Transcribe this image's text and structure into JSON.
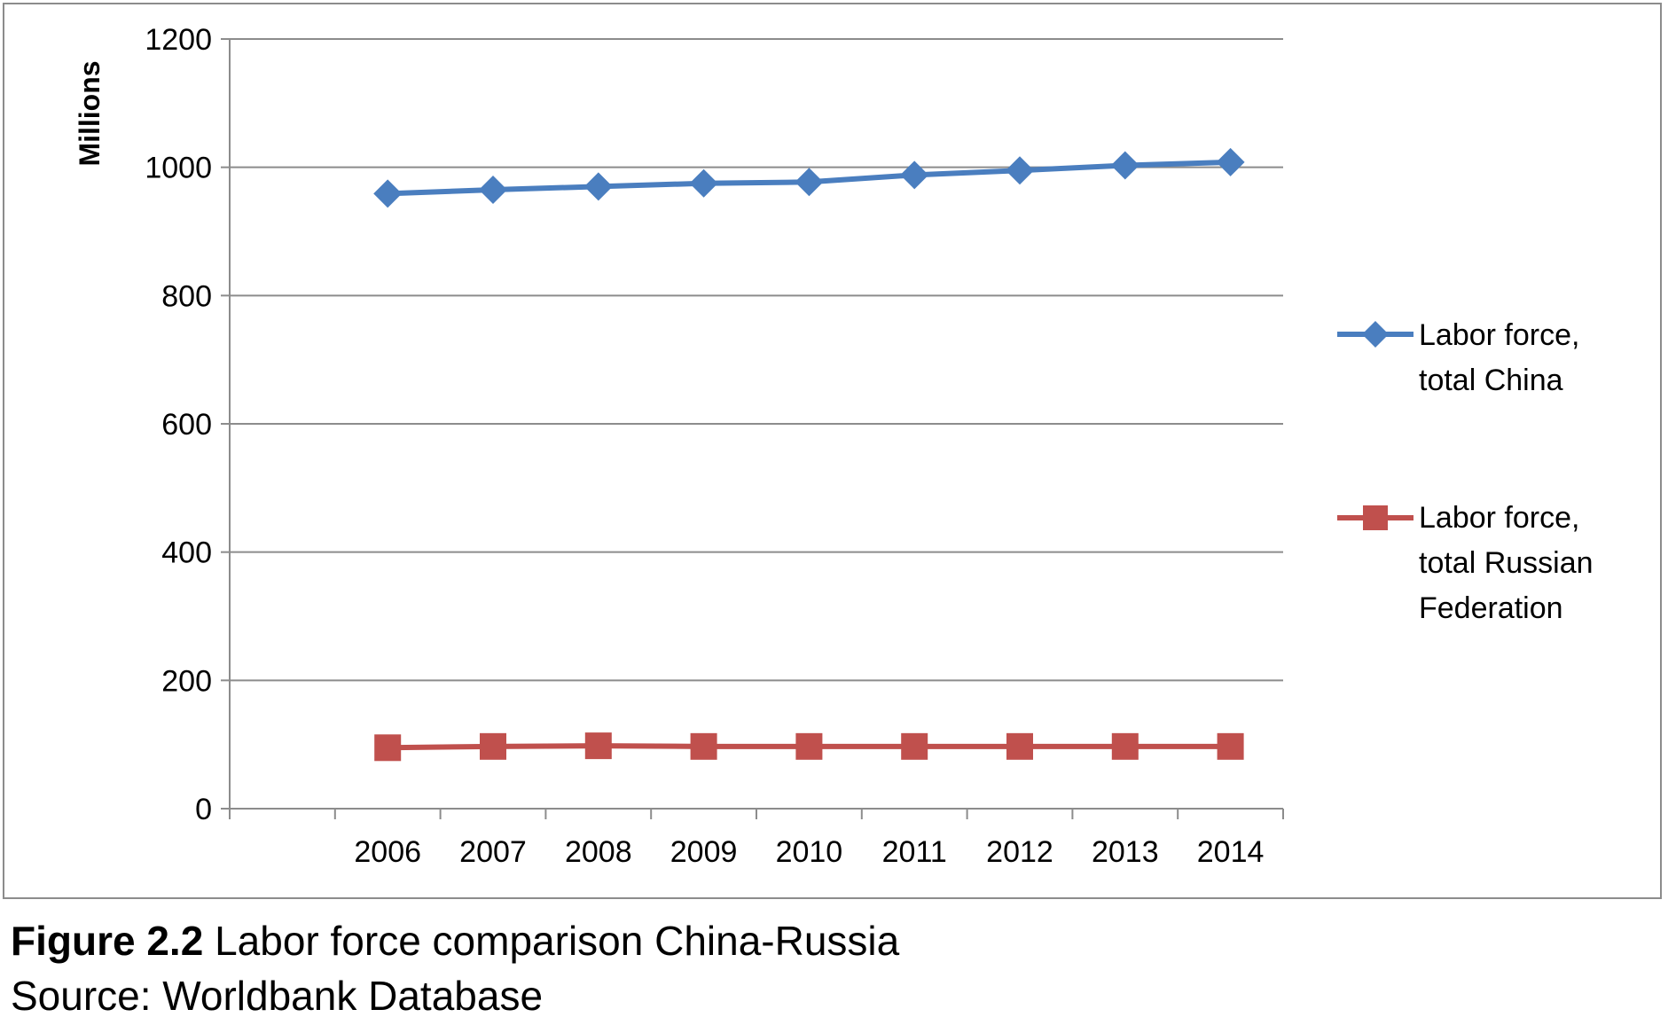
{
  "chart_data": {
    "type": "line",
    "ylabel": "Millions",
    "xlabel": "",
    "ylim": [
      0,
      1200
    ],
    "yticks": [
      "0",
      "200",
      "400",
      "600",
      "800",
      "1000",
      "1200"
    ],
    "categories": [
      "2006",
      "2007",
      "2008",
      "2009",
      "2010",
      "2011",
      "2012",
      "2013",
      "2014"
    ],
    "grid": "horizontal",
    "legend_position": "right",
    "series": [
      {
        "name_line1": "Labor force,",
        "name_line2": "total China",
        "color": "#4a7ebf",
        "marker": "diamond",
        "values": [
          959,
          965,
          970,
          975,
          977,
          988,
          995,
          1003,
          1008
        ]
      },
      {
        "name_line1": "Labor force,",
        "name_line2": "total Russian",
        "name_line3": "Federation",
        "color": "#c0504d",
        "marker": "square",
        "values": [
          95,
          97,
          98,
          97,
          97,
          97,
          97,
          97,
          97
        ]
      }
    ]
  },
  "caption": {
    "figure_label": "Figure 2.2",
    "figure_title": " Labor force comparison China-Russia",
    "source": "Source: Worldbank Database"
  }
}
